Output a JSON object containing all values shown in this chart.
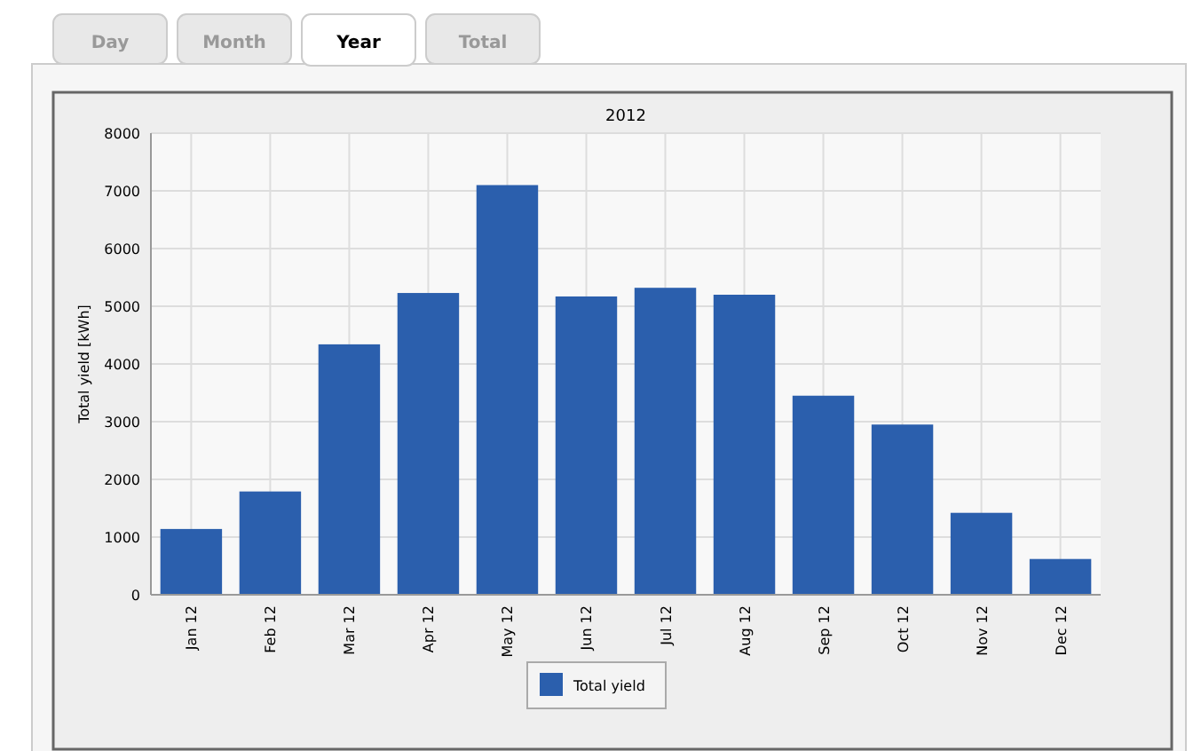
{
  "chart_data": {
    "type": "bar",
    "title": "2012",
    "ylabel": "Total yield [kWh]",
    "categories": [
      "Jan 12",
      "Feb 12",
      "Mar 12",
      "Apr 12",
      "May 12",
      "Jun 12",
      "Jul 12",
      "Aug 12",
      "Sep 12",
      "Oct 12",
      "Nov 12",
      "Dec 12"
    ],
    "series": [
      {
        "name": "Total yield",
        "color": "#2b5fad",
        "values": [
          1140,
          1790,
          4340,
          5230,
          7100,
          5170,
          5320,
          5200,
          3450,
          2950,
          1420,
          620
        ]
      }
    ],
    "ylim": [
      0,
      8000
    ],
    "yticks": [
      0,
      1000,
      2000,
      3000,
      4000,
      5000,
      6000,
      7000,
      8000
    ],
    "grid": true,
    "legend": "bottom",
    "annotations": [
      "Day",
      "Month",
      "Year",
      "Total"
    ]
  }
}
